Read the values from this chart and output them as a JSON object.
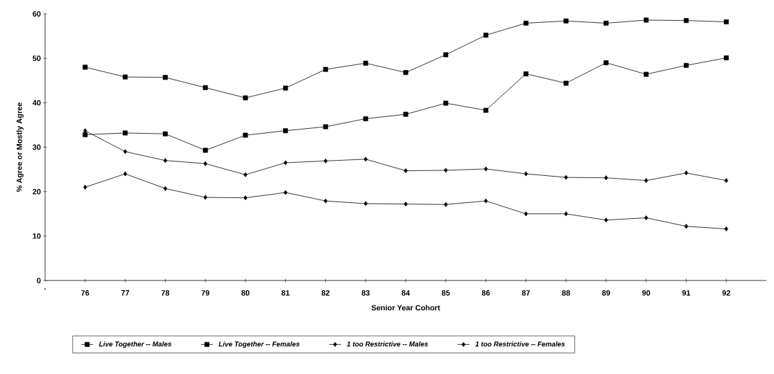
{
  "chart_data": {
    "type": "line",
    "xlabel": "Senior Year Cohort",
    "ylabel": "% Agree or Mostly Agree",
    "categories": [
      ".",
      "76",
      "77",
      "78",
      "79",
      "80",
      "81",
      "82",
      "83",
      "84",
      "85",
      "86",
      "87",
      "88",
      "89",
      "90",
      "91",
      "92"
    ],
    "ylim": [
      0,
      60
    ],
    "yticks": [
      0,
      10,
      20,
      30,
      40,
      50,
      60
    ],
    "legend": "bottom",
    "line_style": "solid",
    "series": [
      {
        "name": "Live Together -- Males",
        "color": "#000000",
        "marker": "square",
        "values": [
          null,
          48.0,
          45.8,
          45.7,
          43.4,
          41.1,
          43.3,
          47.5,
          48.9,
          46.8,
          50.8,
          55.2,
          57.9,
          58.4,
          57.9,
          58.6,
          58.5,
          58.2
        ]
      },
      {
        "name": "Live Together -- Females",
        "color": "#000000",
        "marker": "square",
        "values": [
          null,
          32.8,
          33.2,
          33.0,
          29.3,
          32.7,
          33.7,
          34.6,
          36.4,
          37.4,
          39.9,
          38.3,
          46.5,
          44.4,
          49.0,
          46.4,
          48.4,
          50.1
        ]
      },
      {
        "name": "1 too Restrictive -- Males",
        "color": "#000000",
        "marker": "diamond",
        "values": [
          null,
          33.7,
          29.0,
          27.0,
          26.3,
          23.8,
          26.5,
          26.9,
          27.3,
          24.7,
          24.8,
          25.1,
          24.0,
          23.2,
          23.1,
          22.5,
          24.2,
          22.5
        ]
      },
      {
        "name": "1 too Restrictive -- Females",
        "color": "#000000",
        "marker": "diamond",
        "values": [
          null,
          21.0,
          24.0,
          20.7,
          18.7,
          18.6,
          19.8,
          17.9,
          17.3,
          17.2,
          17.1,
          17.9,
          15.0,
          15.0,
          13.6,
          14.1,
          12.2,
          11.6
        ]
      }
    ]
  }
}
